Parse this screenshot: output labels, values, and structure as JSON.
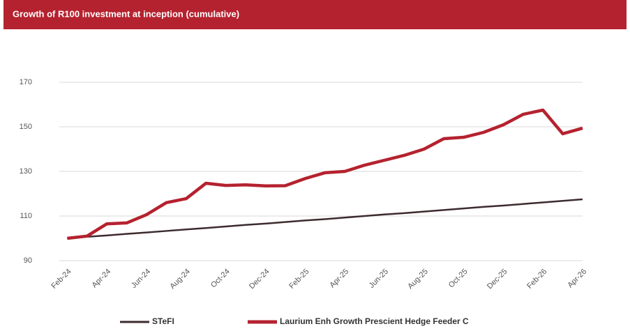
{
  "chart_data": {
    "type": "line",
    "title": "Growth of R100 investment at inception (cumulative)",
    "categories": [
      "Feb-24",
      null,
      "Apr-24",
      null,
      "Jun-24",
      null,
      "Aug-24",
      null,
      "Oct-24",
      null,
      "Dec-24",
      null,
      "Feb-25",
      null,
      "Apr-25",
      null,
      "Jun-25",
      null,
      "Aug-25",
      null,
      "Oct-25",
      null,
      "Dec-25",
      null,
      "Feb-26",
      null,
      "Apr-26"
    ],
    "series": [
      {
        "name": "STeFI",
        "color": "#3d2b2e",
        "values": [
          100,
          100.7,
          101.3,
          102.0,
          102.6,
          103.3,
          104.0,
          104.6,
          105.3,
          106.0,
          106.6,
          107.3,
          108.0,
          108.6,
          109.3,
          110.0,
          110.7,
          111.3,
          112.0,
          112.7,
          113.4,
          114.1,
          114.7,
          115.4,
          116.1,
          116.8,
          117.5
        ]
      },
      {
        "name": "Laurium Enh Growth Prescient Hedge Feeder C",
        "color": "#b5222f",
        "values": [
          100,
          101,
          106.5,
          106.9,
          110.6,
          116,
          117.8,
          124.7,
          123.7,
          124,
          123.5,
          123.6,
          126.8,
          129.4,
          130,
          132.8,
          135,
          137.2,
          140,
          144.7,
          145.3,
          147.5,
          150.9,
          155.6,
          157.5,
          146.9,
          149.4
        ]
      }
    ],
    "ylim": [
      90,
      170
    ],
    "yticks": [
      90,
      110,
      130,
      150,
      170
    ],
    "grid": true,
    "legend": "bottom"
  }
}
